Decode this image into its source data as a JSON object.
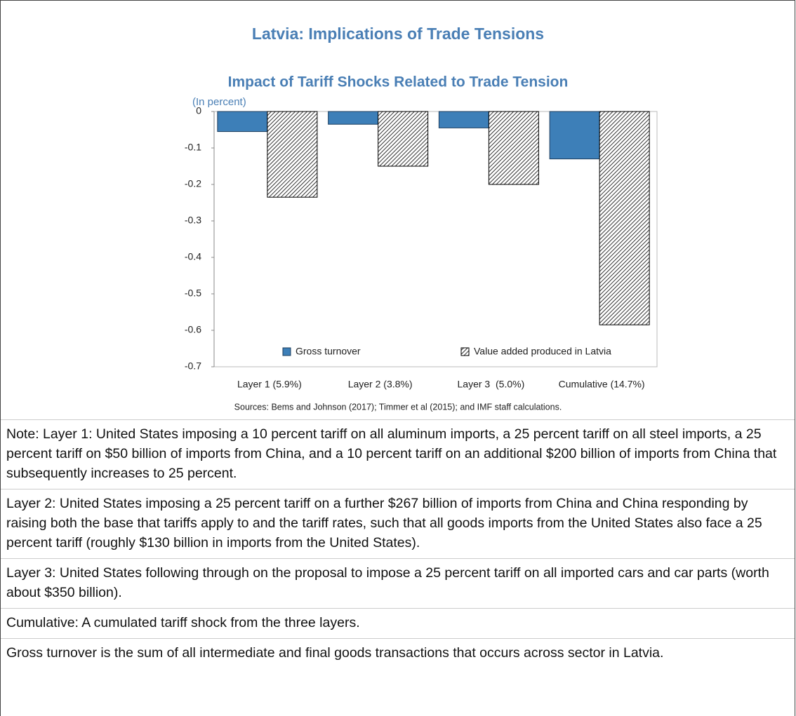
{
  "header": {
    "title": "Latvia: Implications of Trade Tensions"
  },
  "chart_data": {
    "type": "bar",
    "title": "Impact of Tariff Shocks Related to Trade Tension",
    "subtitle": "(In percent)",
    "categories": [
      "Layer 1 (5.9%)",
      "Layer 2 (3.8%)",
      "Layer 3  (5.0%)",
      "Cumulative (14.7%)"
    ],
    "series": [
      {
        "name": "Gross turnover",
        "color": "#3d7fb8",
        "values": [
          -0.055,
          -0.035,
          -0.045,
          -0.13
        ]
      },
      {
        "name": "Value added produced in Latvia",
        "color": "#000000",
        "hatch": true,
        "values": [
          -0.235,
          -0.15,
          -0.2,
          -0.585
        ]
      }
    ],
    "ylim": [
      -0.7,
      0
    ],
    "yticks": [
      0,
      -0.1,
      -0.2,
      -0.3,
      -0.4,
      -0.5,
      -0.6,
      -0.7
    ],
    "source": "Sources: Bems and Johnson (2017); Timmer et al (2015); and IMF staff calculations."
  },
  "notes": [
    "Note:  Layer 1: United States imposing a 10 percent tariff on all aluminum imports, a 25 percent tariff on all steel imports, a 25 percent tariff on $50 billion of imports from China, and a 10 percent tariff on an additional $200 billion of imports from China that subsequently increases to 25 percent.",
    "Layer 2: United States imposing a 25 percent tariff on a further $267 billion of imports from China and China responding by raising both the base that tariffs apply to and the tariff rates, such that all goods imports from the United States also face a 25 percent tariff (roughly $130 billion in imports from the United States).",
    "Layer 3: United States following through on the proposal to impose a 25 percent tariff on all imported cars and car parts (worth about $350 billion).",
    "Cumulative: A cumulated tariff shock from the three layers.",
    "Gross turnover is the sum of all intermediate and final goods transactions that occurs across sector in Latvia."
  ]
}
